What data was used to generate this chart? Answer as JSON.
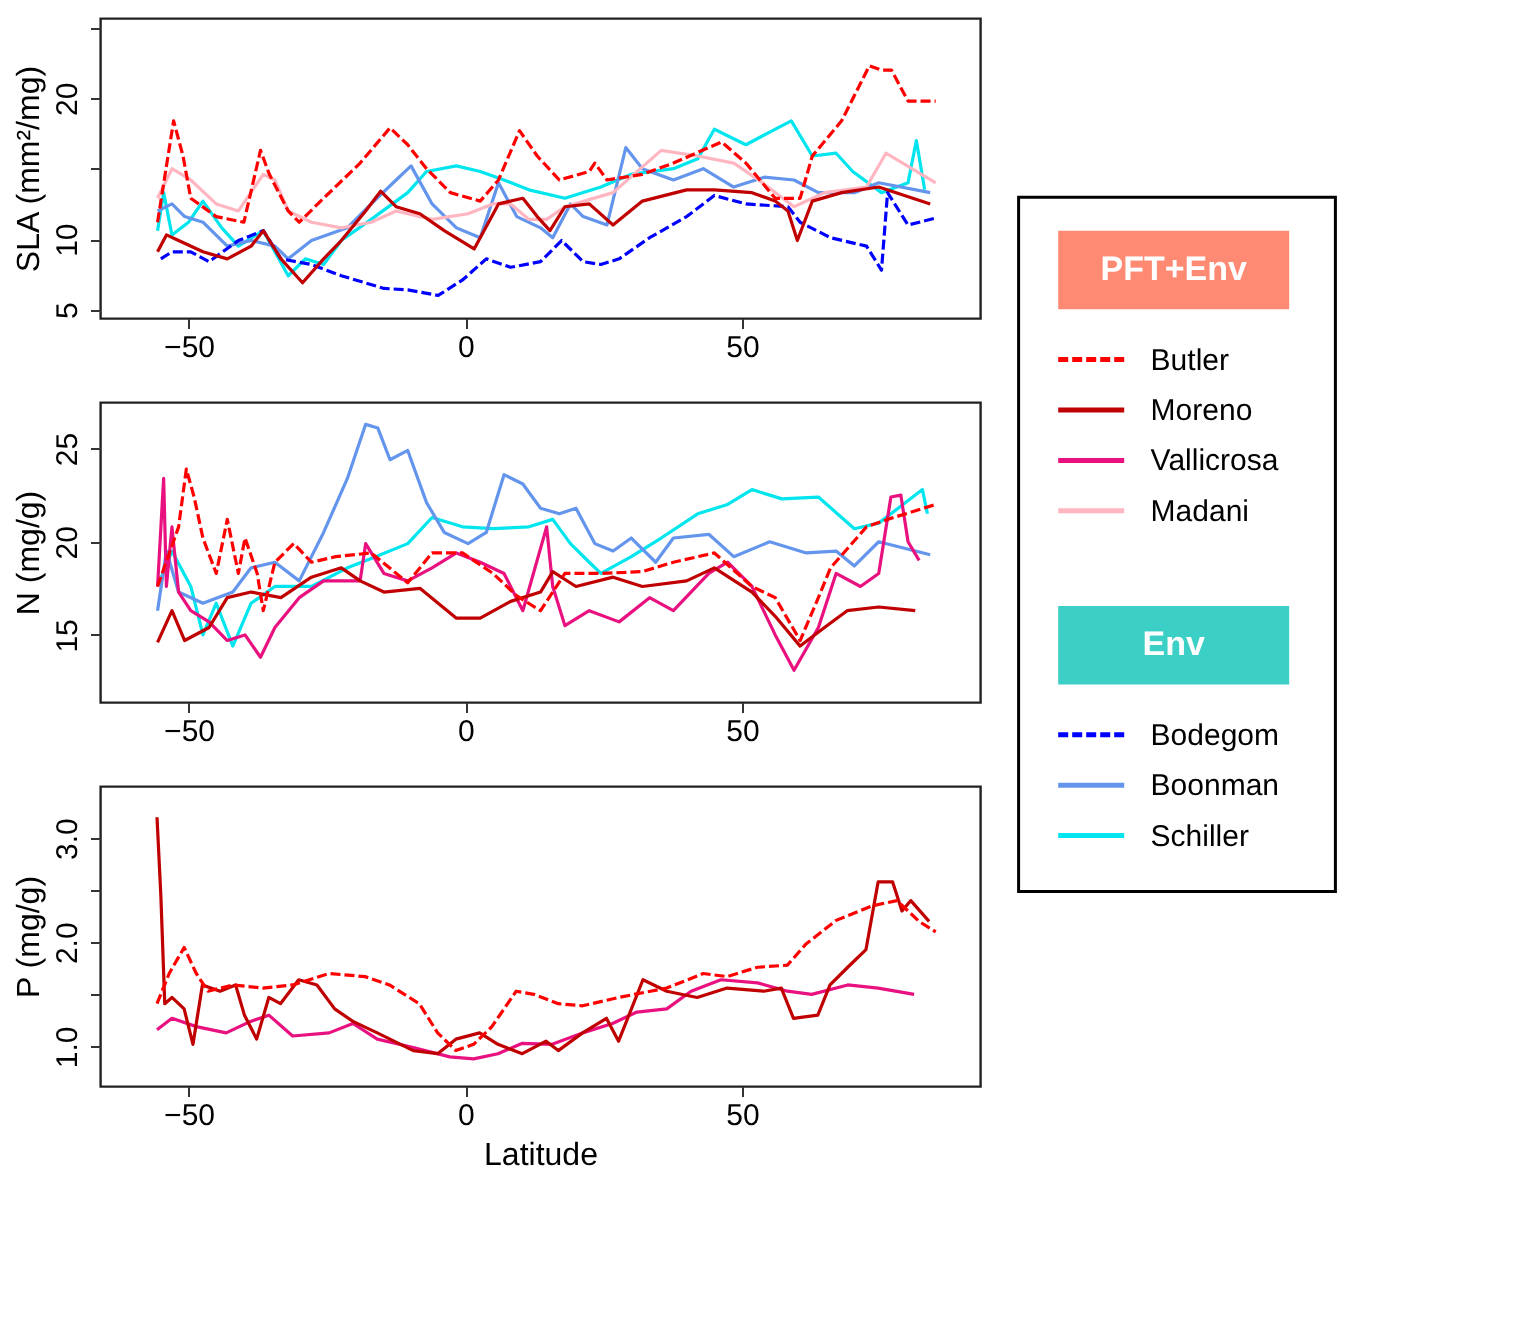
{
  "chart_data": [
    {
      "type": "line",
      "ylabel": "SLA (mm²/mg)",
      "xlim": [
        -66,
        93
      ],
      "ylim": [
        4.4,
        25.7
      ],
      "xticks": [
        -50,
        0,
        50
      ],
      "yticks": [
        5,
        10,
        {
          "value": 15,
          "label": null
        },
        20,
        {
          "value": 25,
          "label": null
        }
      ],
      "legend": "right",
      "annotations": [
        "PFT+Env",
        "Env"
      ],
      "series": [
        {
          "name": "Butler",
          "color": "#ff0000",
          "line_style": "dashed",
          "x": [
            -55.6,
            -52.7,
            -51,
            -49.6,
            -45,
            -40,
            -37,
            -35.4,
            -32,
            -30,
            -25.6,
            -19,
            -13.6,
            -10.4,
            -7,
            -2.7,
            2.7,
            6,
            9.8,
            13,
            17,
            22.4,
            23.4,
            25.6,
            32,
            37.6,
            46.3,
            50.7,
            56,
            60.5,
            62.7,
            68,
            73,
            75.2,
            77,
            80,
            85
          ],
          "values": [
            11.2,
            18.4,
            15.9,
            12.9,
            11.6,
            11.2,
            16.3,
            14.6,
            12.0,
            11.2,
            12.9,
            15.4,
            17.9,
            16.7,
            15.0,
            13.3,
            12.7,
            14.2,
            17.7,
            15.9,
            14.2,
            14.8,
            15.4,
            14.2,
            14.6,
            15.4,
            16.9,
            15.4,
            12.9,
            12.9,
            15.9,
            18.4,
            22.3,
            22.0,
            22.0,
            19.8,
            19.8
          ]
        },
        {
          "name": "Moreno",
          "color": "#c00000",
          "x": [
            -55.6,
            -54,
            -51.8,
            -47.4,
            -43,
            -38.7,
            -36.5,
            -33.3,
            -29.4,
            -25.6,
            -22.4,
            -18,
            -15.3,
            -12.5,
            -8.2,
            -3.8,
            1.6,
            6,
            10.4,
            13,
            15.3,
            18,
            22.4,
            26.7,
            32,
            40,
            45,
            51.8,
            56,
            58.3,
            60,
            62.7,
            68,
            74.7,
            84
          ],
          "values": [
            9.1,
            10.3,
            9.9,
            9.1,
            8.6,
            9.5,
            10.6,
            8.6,
            6.9,
            8.6,
            9.9,
            12.0,
            13.4,
            12.3,
            11.8,
            10.6,
            9.3,
            12.5,
            12.9,
            11.6,
            10.6,
            12.3,
            12.5,
            11.0,
            12.7,
            13.5,
            13.5,
            13.3,
            12.7,
            12.0,
            9.9,
            12.7,
            13.3,
            13.7,
            12.5
          ]
        },
        {
          "name": "Madani",
          "color": "#ffb6c1",
          "x": [
            -55.6,
            -53,
            -49.6,
            -45,
            -41,
            -36.5,
            -34.4,
            -32,
            -27.8,
            -22.4,
            -17,
            -12.5,
            -6,
            0.5,
            5,
            8.2,
            11.5,
            14.7,
            18,
            26.7,
            35.4,
            42,
            48.5,
            53,
            59.4,
            64.9,
            72.5,
            76,
            85
          ],
          "values": [
            12.9,
            15.0,
            14.2,
            12.5,
            12.0,
            14.6,
            14.2,
            12.0,
            11.2,
            10.8,
            11.2,
            12.0,
            11.4,
            11.8,
            12.5,
            12.5,
            11.4,
            11.4,
            12.3,
            13.3,
            16.3,
            15.9,
            15.4,
            14.2,
            12.3,
            13.3,
            13.7,
            16.1,
            14.0
          ]
        },
        {
          "name": "Bodegom",
          "color": "#0000ff",
          "line_style": "dashed",
          "x": [
            -55,
            -53,
            -49.6,
            -46.3,
            -41,
            -36.5,
            -33.3,
            -27.8,
            -22.4,
            -14.7,
            -10.4,
            -4.9,
            -0.5,
            3.8,
            8.2,
            13.6,
            17.4,
            21.3,
            24.5,
            27.8,
            33.3,
            40,
            45,
            50.7,
            58.3,
            60.5,
            66,
            72.5,
            75.2,
            76.3,
            80,
            85
          ],
          "values": [
            8.6,
            9.1,
            9.1,
            8.4,
            9.9,
            10.6,
            8.6,
            8.2,
            7.4,
            6.5,
            6.4,
            6.0,
            7.1,
            8.6,
            8.0,
            8.4,
            9.9,
            8.4,
            8.2,
            8.6,
            10.1,
            11.6,
            13.1,
            12.5,
            12.3,
            11.2,
            10.1,
            9.5,
            7.8,
            13.3,
            11.0,
            11.5
          ]
        },
        {
          "name": "Boonman",
          "color": "#6495ed",
          "x": [
            -55.6,
            -53,
            -50.7,
            -47.4,
            -43,
            -38.7,
            -34.4,
            -32,
            -27.8,
            -21.3,
            -17,
            -12.5,
            -9.8,
            -6,
            -1.6,
            2.7,
            6,
            9.3,
            13.6,
            15.8,
            19,
            21.3,
            25.6,
            29,
            32,
            37.6,
            43,
            48.5,
            54,
            59.4,
            63.8,
            70.3,
            74.7,
            84
          ],
          "values": [
            12.0,
            12.5,
            11.6,
            11.2,
            9.5,
            9.9,
            9.5,
            8.6,
            9.9,
            10.8,
            12.5,
            14.2,
            15.2,
            12.5,
            10.8,
            10.1,
            14.0,
            11.6,
            10.8,
            10.1,
            12.5,
            11.6,
            11.0,
            16.5,
            15.0,
            14.2,
            15.0,
            13.7,
            14.4,
            14.2,
            13.3,
            13.3,
            14.0,
            13.3
          ]
        },
        {
          "name": "Schiller",
          "color": "#00e5ee",
          "x": [
            -55.6,
            -54.5,
            -53,
            -50,
            -47.4,
            -44,
            -41,
            -36.5,
            -32,
            -28.9,
            -25.6,
            -22.4,
            -17,
            -10.4,
            -7,
            -1.6,
            2.7,
            7,
            11.5,
            18,
            24.5,
            30,
            37.6,
            42,
            45,
            50.7,
            55,
            58.9,
            62.7,
            67,
            70,
            75.2,
            80,
            81.5,
            83
          ],
          "values": [
            10.6,
            13.3,
            10.3,
            11.2,
            12.7,
            10.8,
            9.5,
            10.6,
            7.4,
            8.6,
            8.2,
            9.9,
            11.4,
            13.3,
            14.8,
            15.2,
            14.8,
            14.2,
            13.5,
            12.9,
            13.7,
            14.6,
            15.0,
            15.7,
            17.8,
            16.7,
            17.6,
            18.4,
            15.9,
            16.1,
            14.8,
            13.3,
            14.0,
            17.0,
            13.5
          ]
        }
      ]
    },
    {
      "type": "line",
      "ylabel": "N (mg/g)",
      "xlim": [
        -66,
        93
      ],
      "ylim": [
        11.4,
        27.5
      ],
      "xticks": [
        -50,
        0,
        50
      ],
      "yticks": [
        15,
        20,
        25
      ],
      "series": [
        {
          "name": "Butler",
          "color": "#ff0000",
          "line_style": "dashed",
          "x": [
            -55.6,
            -51.8,
            -50.4,
            -49,
            -47.4,
            -45,
            -43,
            -41,
            -39.8,
            -37.6,
            -36.5,
            -34.4,
            -31,
            -27.8,
            -23.4,
            -17,
            -10.4,
            -6,
            -0.5,
            5,
            9.3,
            13.6,
            18,
            24.5,
            32,
            37.6,
            45,
            51.8,
            56,
            60.5,
            63.8,
            66,
            72.5,
            76.3,
            85
          ],
          "values": [
            17.6,
            20.8,
            23.9,
            22.4,
            20.2,
            18.3,
            21.2,
            18.3,
            20.2,
            18.3,
            16.3,
            18.9,
            19.9,
            18.9,
            19.2,
            19.4,
            17.8,
            19.4,
            19.4,
            18.3,
            17.1,
            16.3,
            18.3,
            18.3,
            18.4,
            18.9,
            19.4,
            17.6,
            17.0,
            14.7,
            17.0,
            18.6,
            20.8,
            21.2,
            22.0
          ]
        },
        {
          "name": "Moreno",
          "color": "#c00000",
          "x": [
            -55.6,
            -53,
            -50.7,
            -46.3,
            -43,
            -38.7,
            -33.3,
            -27.8,
            -22.4,
            -19,
            -14.7,
            -8.2,
            -1.6,
            2.7,
            8.2,
            13.6,
            15.8,
            20,
            26.7,
            32,
            40,
            45,
            51.8,
            56,
            60.5,
            64.9,
            69,
            74.7,
            81.3
          ],
          "values": [
            14.6,
            16.3,
            14.7,
            15.4,
            17.0,
            17.3,
            17.0,
            18.1,
            18.6,
            17.9,
            17.3,
            17.5,
            15.9,
            15.9,
            16.8,
            17.3,
            18.4,
            17.6,
            18.1,
            17.6,
            17.9,
            18.6,
            17.3,
            16.0,
            14.4,
            15.4,
            16.3,
            16.5,
            16.3
          ]
        },
        {
          "name": "Vallicrosa",
          "color": "#e8117f",
          "x": [
            -55.6,
            -54.5,
            -54,
            -53,
            -51.8,
            -49.6,
            -46.3,
            -43,
            -39.8,
            -37,
            -34.4,
            -30,
            -25.6,
            -19,
            -18,
            -14.7,
            -10.4,
            -6,
            -1.6,
            2.7,
            7,
            10.4,
            14.7,
            15.8,
            18,
            22.4,
            27.8,
            33.3,
            37.6,
            44,
            47.4,
            51.8,
            56,
            59.4,
            63.8,
            67,
            71.4,
            74.7,
            76.9,
            78.7,
            80,
            82
          ],
          "values": [
            17.6,
            23.4,
            17.6,
            20.8,
            17.3,
            16.3,
            15.7,
            14.7,
            15.0,
            13.8,
            15.4,
            17.0,
            17.9,
            17.9,
            19.9,
            18.3,
            17.9,
            18.6,
            19.4,
            18.9,
            18.3,
            16.3,
            20.8,
            17.6,
            15.5,
            16.3,
            15.7,
            17.0,
            16.3,
            18.3,
            18.9,
            17.6,
            15.0,
            13.1,
            15.4,
            18.3,
            17.6,
            18.3,
            22.4,
            22.5,
            20.0,
            19.0
          ]
        },
        {
          "name": "Boonman",
          "color": "#6495ed",
          "x": [
            -55.6,
            -54,
            -51.8,
            -47.4,
            -42,
            -38.7,
            -34.4,
            -30,
            -25.6,
            -21.3,
            -18,
            -15.8,
            -13.6,
            -10.4,
            -7,
            -3.8,
            0.5,
            3.8,
            7,
            10.4,
            13.6,
            17,
            20,
            23.4,
            26.7,
            30,
            34.4,
            37.6,
            44,
            48.5,
            55,
            61.6,
            67,
            70.3,
            74.7,
            84
          ],
          "values": [
            16.3,
            19.5,
            17.3,
            16.7,
            17.3,
            18.6,
            18.9,
            17.9,
            20.5,
            23.4,
            26.3,
            26.1,
            24.4,
            24.9,
            22.1,
            20.5,
            19.9,
            20.5,
            23.6,
            23.1,
            21.8,
            21.5,
            21.8,
            19.9,
            19.5,
            20.2,
            18.9,
            20.2,
            20.4,
            19.2,
            20.0,
            19.4,
            19.5,
            18.7,
            20.0,
            19.3
          ]
        },
        {
          "name": "Schiller",
          "color": "#00e5ee",
          "x": [
            -55.6,
            -53,
            -49.6,
            -47.4,
            -45,
            -42,
            -38.7,
            -34.4,
            -27.8,
            -21.3,
            -17,
            -10.4,
            -6,
            -0.5,
            5,
            11.5,
            15.8,
            19,
            22.4,
            24.5,
            30,
            35.4,
            42,
            47.4,
            51.8,
            57.2,
            63.8,
            70.3,
            74.7,
            82.6,
            83.5
          ],
          "values": [
            17.6,
            19.5,
            17.6,
            15.0,
            16.7,
            14.4,
            16.7,
            17.6,
            17.6,
            18.6,
            19.1,
            19.9,
            21.3,
            20.8,
            20.7,
            20.8,
            21.2,
            19.9,
            18.9,
            18.3,
            19.2,
            20.2,
            21.5,
            22.0,
            22.8,
            22.3,
            22.4,
            20.7,
            21.0,
            22.8,
            21.5
          ]
        }
      ]
    },
    {
      "type": "line",
      "ylabel": "P (mg/g)",
      "xlabel": "Latitude",
      "xlim": [
        -66,
        93
      ],
      "ylim": [
        0.62,
        3.5
      ],
      "xticks": [
        -50,
        0,
        50
      ],
      "yticks": [
        {
          "value": 1,
          "label": "1.0"
        },
        {
          "value": 1.5,
          "label": null
        },
        {
          "value": 2,
          "label": "2.0"
        },
        {
          "value": 2.5,
          "label": null
        },
        {
          "value": 3,
          "label": "3.0"
        }
      ],
      "series": [
        {
          "name": "Butler",
          "color": "#ff0000",
          "line_style": "dashed",
          "x": [
            -55.7,
            -53.5,
            -50.8,
            -48.6,
            -46.5,
            -42,
            -36.6,
            -31.2,
            -24.6,
            -18.1,
            -13.7,
            -8.3,
            -5,
            -1.7,
            1.5,
            4.8,
            9.2,
            12.4,
            16.8,
            21.2,
            27.7,
            36.4,
            43,
            47.3,
            52.8,
            58.2,
            61.5,
            67,
            73.5,
            78,
            82,
            85
          ],
          "values": [
            1.41,
            1.7,
            1.95,
            1.7,
            1.53,
            1.59,
            1.56,
            1.59,
            1.7,
            1.67,
            1.59,
            1.41,
            1.13,
            0.96,
            1.02,
            1.19,
            1.53,
            1.5,
            1.41,
            1.39,
            1.47,
            1.56,
            1.7,
            1.67,
            1.76,
            1.78,
            1.98,
            2.21,
            2.35,
            2.4,
            2.2,
            2.1
          ]
        },
        {
          "name": "Moreno",
          "color": "#c00000",
          "x": [
            -55.7,
            -55,
            -54.3,
            -53,
            -50.8,
            -49.2,
            -47.5,
            -44.3,
            -41.5,
            -39.9,
            -37.7,
            -35.5,
            -33.4,
            -30.1,
            -26.8,
            -23.6,
            -20.3,
            -15.9,
            -9.4,
            -5,
            -1.7,
            2.6,
            5.9,
            10.3,
            14.6,
            16.8,
            21.2,
            25.5,
            27.7,
            32.1,
            36.4,
            41.9,
            47.3,
            53.9,
            57.1,
            59.3,
            63.7,
            65.9,
            69.1,
            72.4,
            74.6,
            77.2,
            78.9,
            80.5,
            83.8
          ],
          "values": [
            3.2,
            2.44,
            1.41,
            1.47,
            1.36,
            1.02,
            1.59,
            1.53,
            1.59,
            1.3,
            1.07,
            1.47,
            1.41,
            1.64,
            1.59,
            1.36,
            1.24,
            1.13,
            0.96,
            0.93,
            1.07,
            1.13,
            1.02,
            0.93,
            1.05,
            0.96,
            1.13,
            1.27,
            1.05,
            1.64,
            1.53,
            1.47,
            1.56,
            1.53,
            1.56,
            1.27,
            1.3,
            1.59,
            1.76,
            1.93,
            2.58,
            2.58,
            2.3,
            2.4,
            2.2
          ]
        },
        {
          "name": "Vallicrosa",
          "color": "#e8117f",
          "x": [
            -55.7,
            -53,
            -48.6,
            -43.2,
            -38.8,
            -35.5,
            -31.2,
            -24.6,
            -20.3,
            -15.9,
            -9.4,
            -2.8,
            1.5,
            5.9,
            10.3,
            15.7,
            21.2,
            26.6,
            31,
            36.4,
            40.8,
            46.2,
            52.8,
            58.2,
            62.6,
            69.1,
            74.6,
            81.1
          ],
          "values": [
            1.16,
            1.27,
            1.19,
            1.13,
            1.24,
            1.3,
            1.1,
            1.13,
            1.22,
            1.07,
            0.99,
            0.9,
            0.88,
            0.93,
            1.03,
            1.02,
            1.13,
            1.22,
            1.33,
            1.36,
            1.53,
            1.64,
            1.61,
            1.53,
            1.5,
            1.59,
            1.56,
            1.5
          ]
        }
      ]
    }
  ]
}
